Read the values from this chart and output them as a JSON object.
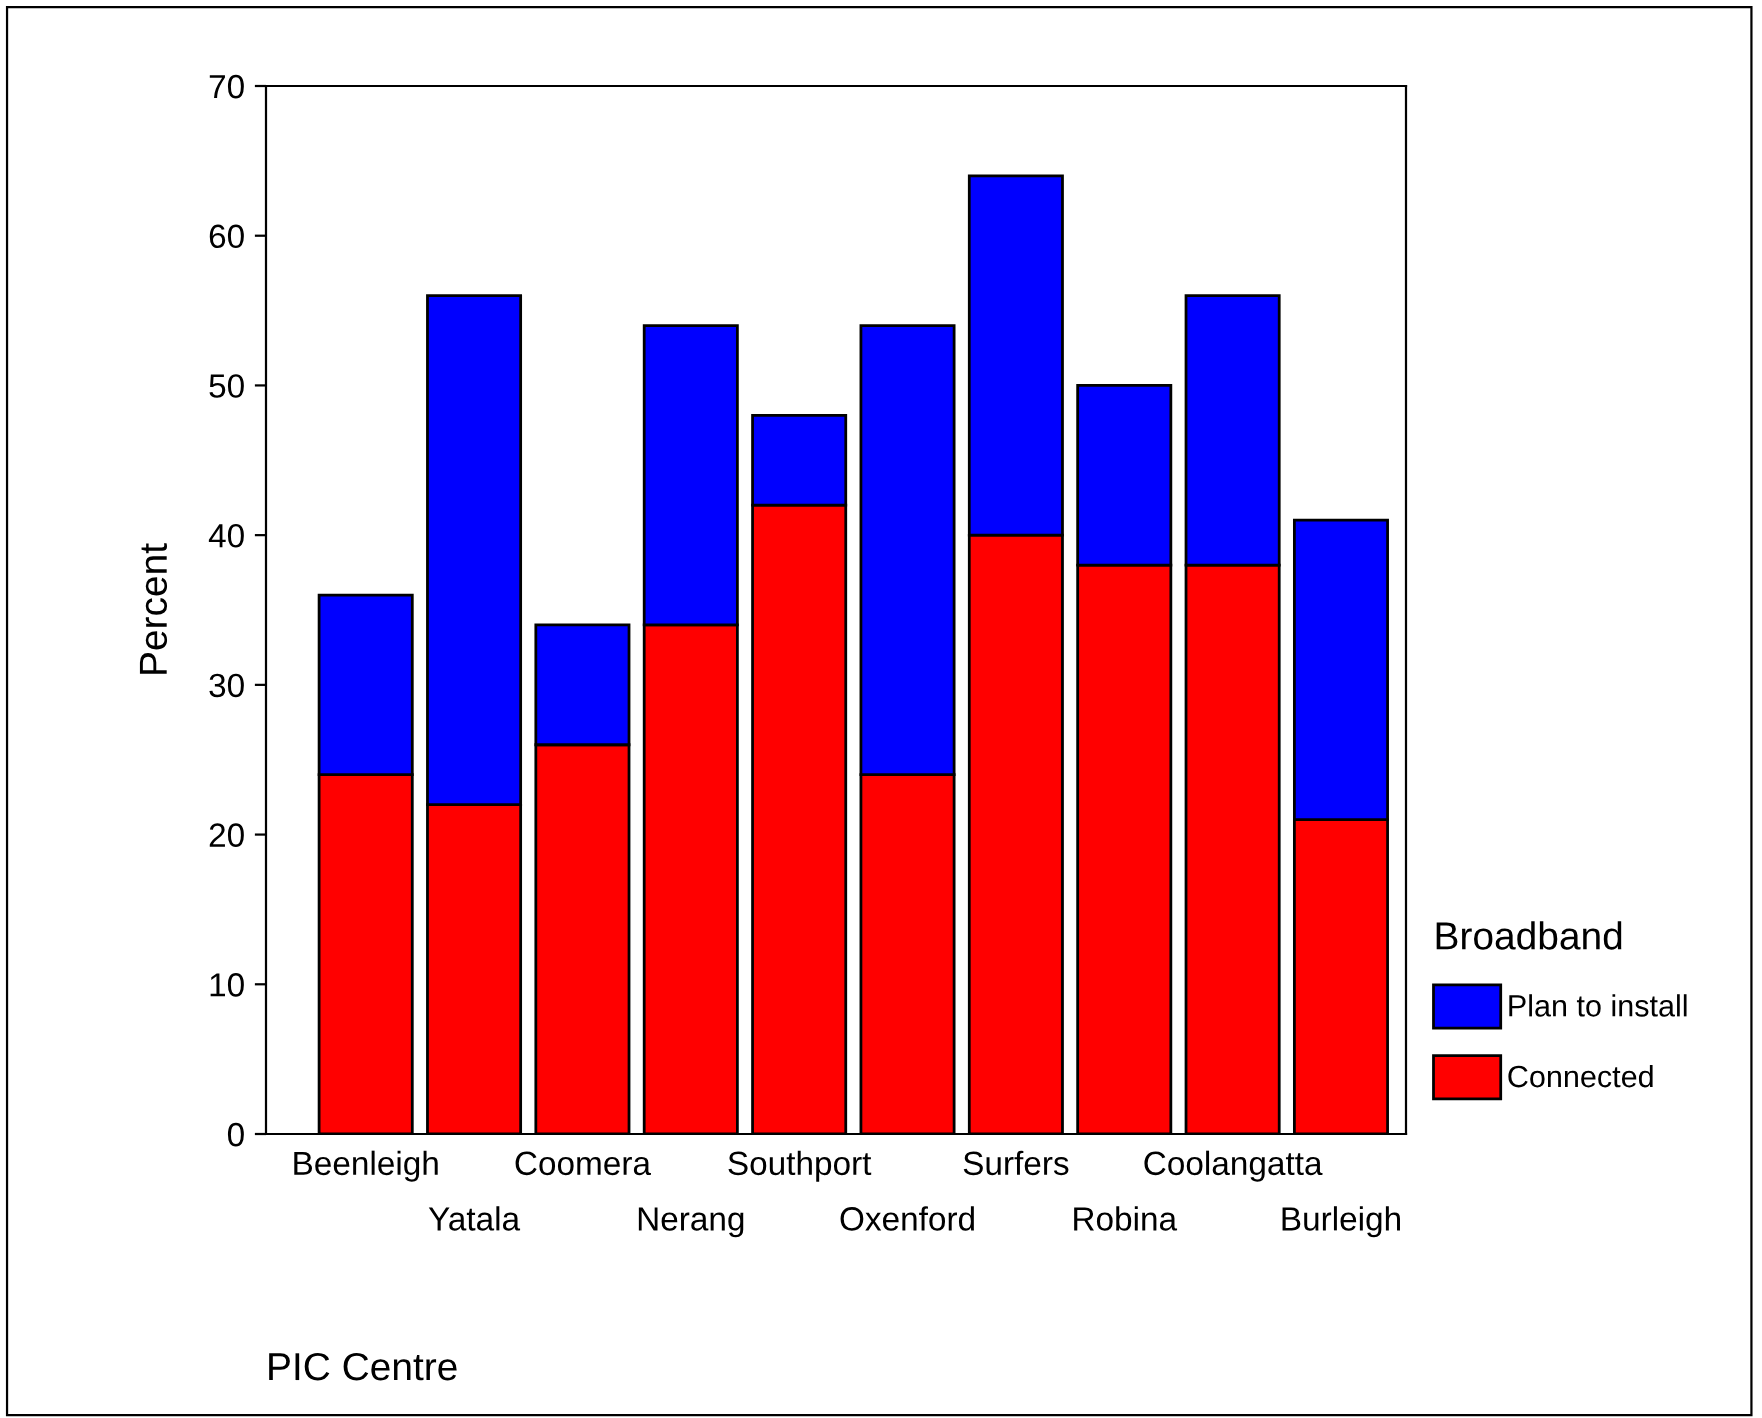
{
  "chart_data": {
    "type": "bar",
    "stacked": true,
    "xlabel": "PIC Centre",
    "ylabel": "Percent",
    "legend_title": "Broadband",
    "legend": "right",
    "categories": [
      "Beenleigh",
      "Yatala",
      "Coomera",
      "Nerang",
      "Southport",
      "Oxenford",
      "Surfers",
      "Robina",
      "Coolangatta",
      "Burleigh"
    ],
    "series": [
      {
        "name": "Connected",
        "color": "#ff0000",
        "values": [
          24,
          22,
          26,
          34,
          42,
          24,
          40,
          38,
          38,
          21
        ]
      },
      {
        "name": "Plan to install",
        "color": "#0000ff",
        "values": [
          12,
          34,
          8,
          20,
          6,
          30,
          24,
          12,
          18,
          20
        ]
      }
    ],
    "ylim": [
      0,
      70
    ],
    "yticks": [
      0,
      10,
      20,
      30,
      40,
      50,
      60,
      70
    ],
    "grid": false
  }
}
